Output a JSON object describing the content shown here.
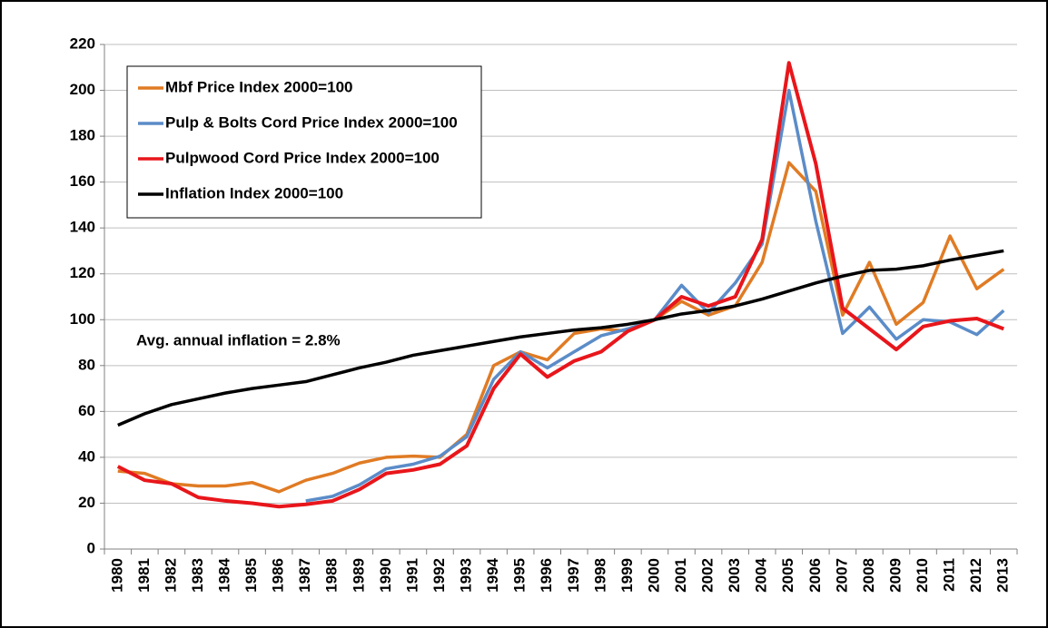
{
  "chart_data": {
    "type": "line",
    "annotation": "Avg. annual inflation = 2.8%",
    "categories": [
      "1980",
      "1981",
      "1982",
      "1983",
      "1984",
      "1985",
      "1986",
      "1987",
      "1988",
      "1989",
      "1990",
      "1991",
      "1992",
      "1993",
      "1994",
      "1995",
      "1996",
      "1997",
      "1998",
      "1999",
      "2000",
      "2001",
      "2002",
      "2003",
      "2004",
      "2005",
      "2006",
      "2007",
      "2008",
      "2009",
      "2010",
      "2011",
      "2012",
      "2013"
    ],
    "series": [
      {
        "name": "Mbf Price Index 2000=100",
        "color": "#e07b24",
        "values": [
          34,
          33,
          28.5,
          27.5,
          27.5,
          29,
          25,
          30,
          33,
          37.5,
          40,
          40.5,
          40,
          50,
          80,
          86,
          82.5,
          94,
          96,
          95,
          100,
          108,
          102,
          106,
          125,
          168.5,
          156,
          102,
          125,
          98,
          107.5,
          136.5,
          113.5,
          122
        ]
      },
      {
        "name": "Pulp & Bolts Cord Price Index 2000=100",
        "color": "#5b8cc8",
        "values": [
          null,
          null,
          null,
          null,
          null,
          null,
          null,
          21,
          23,
          28,
          35,
          37,
          40.5,
          49,
          74,
          86,
          79,
          86,
          93,
          96,
          100,
          115,
          103,
          116,
          133,
          200,
          143,
          94,
          105.5,
          91.5,
          100,
          99,
          93.5,
          104
        ]
      },
      {
        "name": "Pulpwood Cord Price Index 2000=100",
        "color": "#e8161b",
        "values": [
          36,
          30,
          28.5,
          22.5,
          21,
          20,
          18.5,
          19.5,
          21,
          26,
          33,
          34.5,
          37,
          45,
          70,
          85,
          75,
          82,
          86,
          95,
          100,
          110,
          106,
          110,
          135,
          212,
          168,
          105,
          96,
          87,
          97,
          99.5,
          100.5,
          96
        ]
      },
      {
        "name": "Inflation Index 2000=100",
        "color": "#000000",
        "values": [
          54,
          59,
          63,
          65.5,
          68,
          70,
          71.5,
          73,
          76,
          79,
          81.5,
          84.5,
          86.5,
          88.5,
          90.5,
          92.5,
          94,
          95.5,
          96.5,
          98,
          100,
          102.5,
          104,
          106,
          109,
          112.5,
          116,
          119,
          121.5,
          122,
          123.5,
          126,
          128,
          130
        ]
      }
    ],
    "ylim": [
      0,
      220
    ],
    "yticks": [
      0,
      20,
      40,
      60,
      80,
      100,
      120,
      140,
      160,
      180,
      200,
      220
    ],
    "grid": true,
    "legend": "upper left"
  }
}
